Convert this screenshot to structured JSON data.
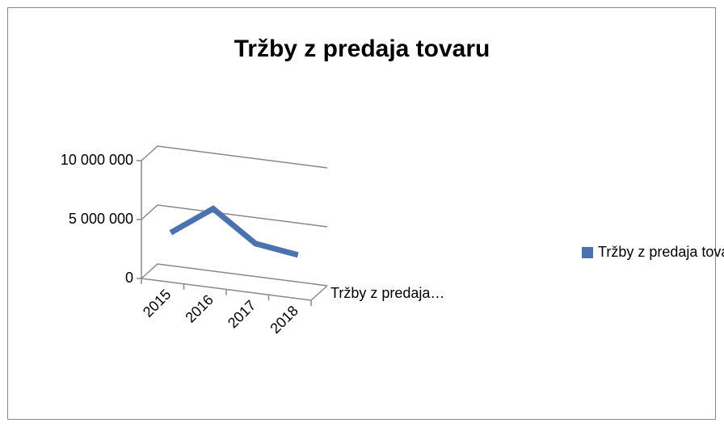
{
  "chart_data": {
    "type": "line",
    "title": "Tržby z predaja tovaru",
    "categories": [
      "2015",
      "2016",
      "2017",
      "2018"
    ],
    "series": [
      {
        "name": "Tržby z predaja tovaru",
        "color": "#4a72b0",
        "values": [
          3500000,
          6000000,
          3500000,
          3000000
        ]
      }
    ],
    "depth_label": "Tržby z predaja…",
    "ylim": [
      0,
      10000000
    ],
    "yticks": [
      0,
      {
        "value": 5000000,
        "label": "5 000 000"
      },
      {
        "value": 10000000,
        "label": "10 000 000"
      }
    ],
    "grid": true,
    "legend": "right"
  }
}
